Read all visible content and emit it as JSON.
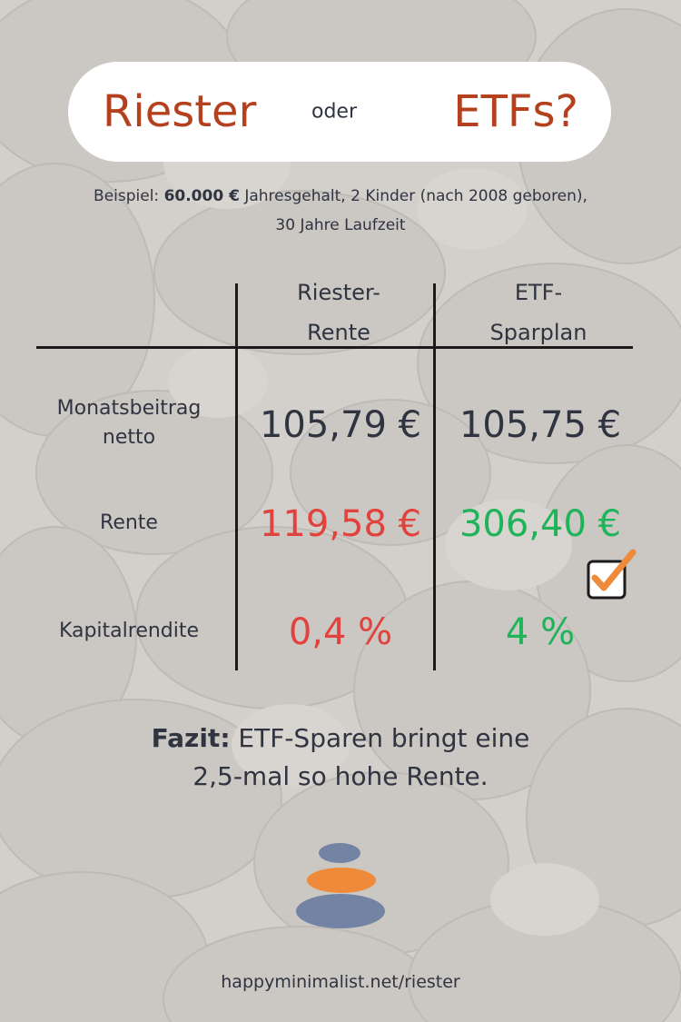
{
  "title": {
    "left": "Riester",
    "middle": "oder",
    "right": "ETFs?"
  },
  "subtitle": {
    "prefix": "Beispiel: ",
    "salary": "60.000 €",
    "rest_line1": " Jahresgehalt, 2 Kinder (nach 2008 geboren),",
    "line2": "30 Jahre Laufzeit"
  },
  "table": {
    "columns": [
      {
        "line1": "Riester-",
        "line2": "Rente"
      },
      {
        "line1": "ETF-",
        "line2": "Sparplan"
      }
    ],
    "rows": [
      {
        "label_line1": "Monatsbeitrag",
        "label_line2": "netto",
        "riester": "105,79 €",
        "etf": "105,75 €"
      },
      {
        "label_line1": "Rente",
        "riester": "119,58 €",
        "etf": "306,40 €"
      },
      {
        "label_line1": "Kapitalrendite",
        "riester": "0,4 %",
        "etf": "4 %"
      }
    ]
  },
  "fazit": {
    "bold": "Fazit:",
    "text_line1": " ETF-Sparen bringt eine",
    "text_line2": "2,5-mal so hohe Rente."
  },
  "footer_url": "happyminimalist.net/riester",
  "colors": {
    "accent_title": "#b5401d",
    "negative": "#e2423d",
    "positive": "#1fb35a",
    "text": "#2f3440",
    "check_orange": "#f08a3b",
    "logo_blue": "#7383a3",
    "logo_orange": "#f08a3b"
  },
  "icons": {
    "checkbox": "checkbox-checked-icon",
    "logo": "stacked-stones-logo"
  }
}
